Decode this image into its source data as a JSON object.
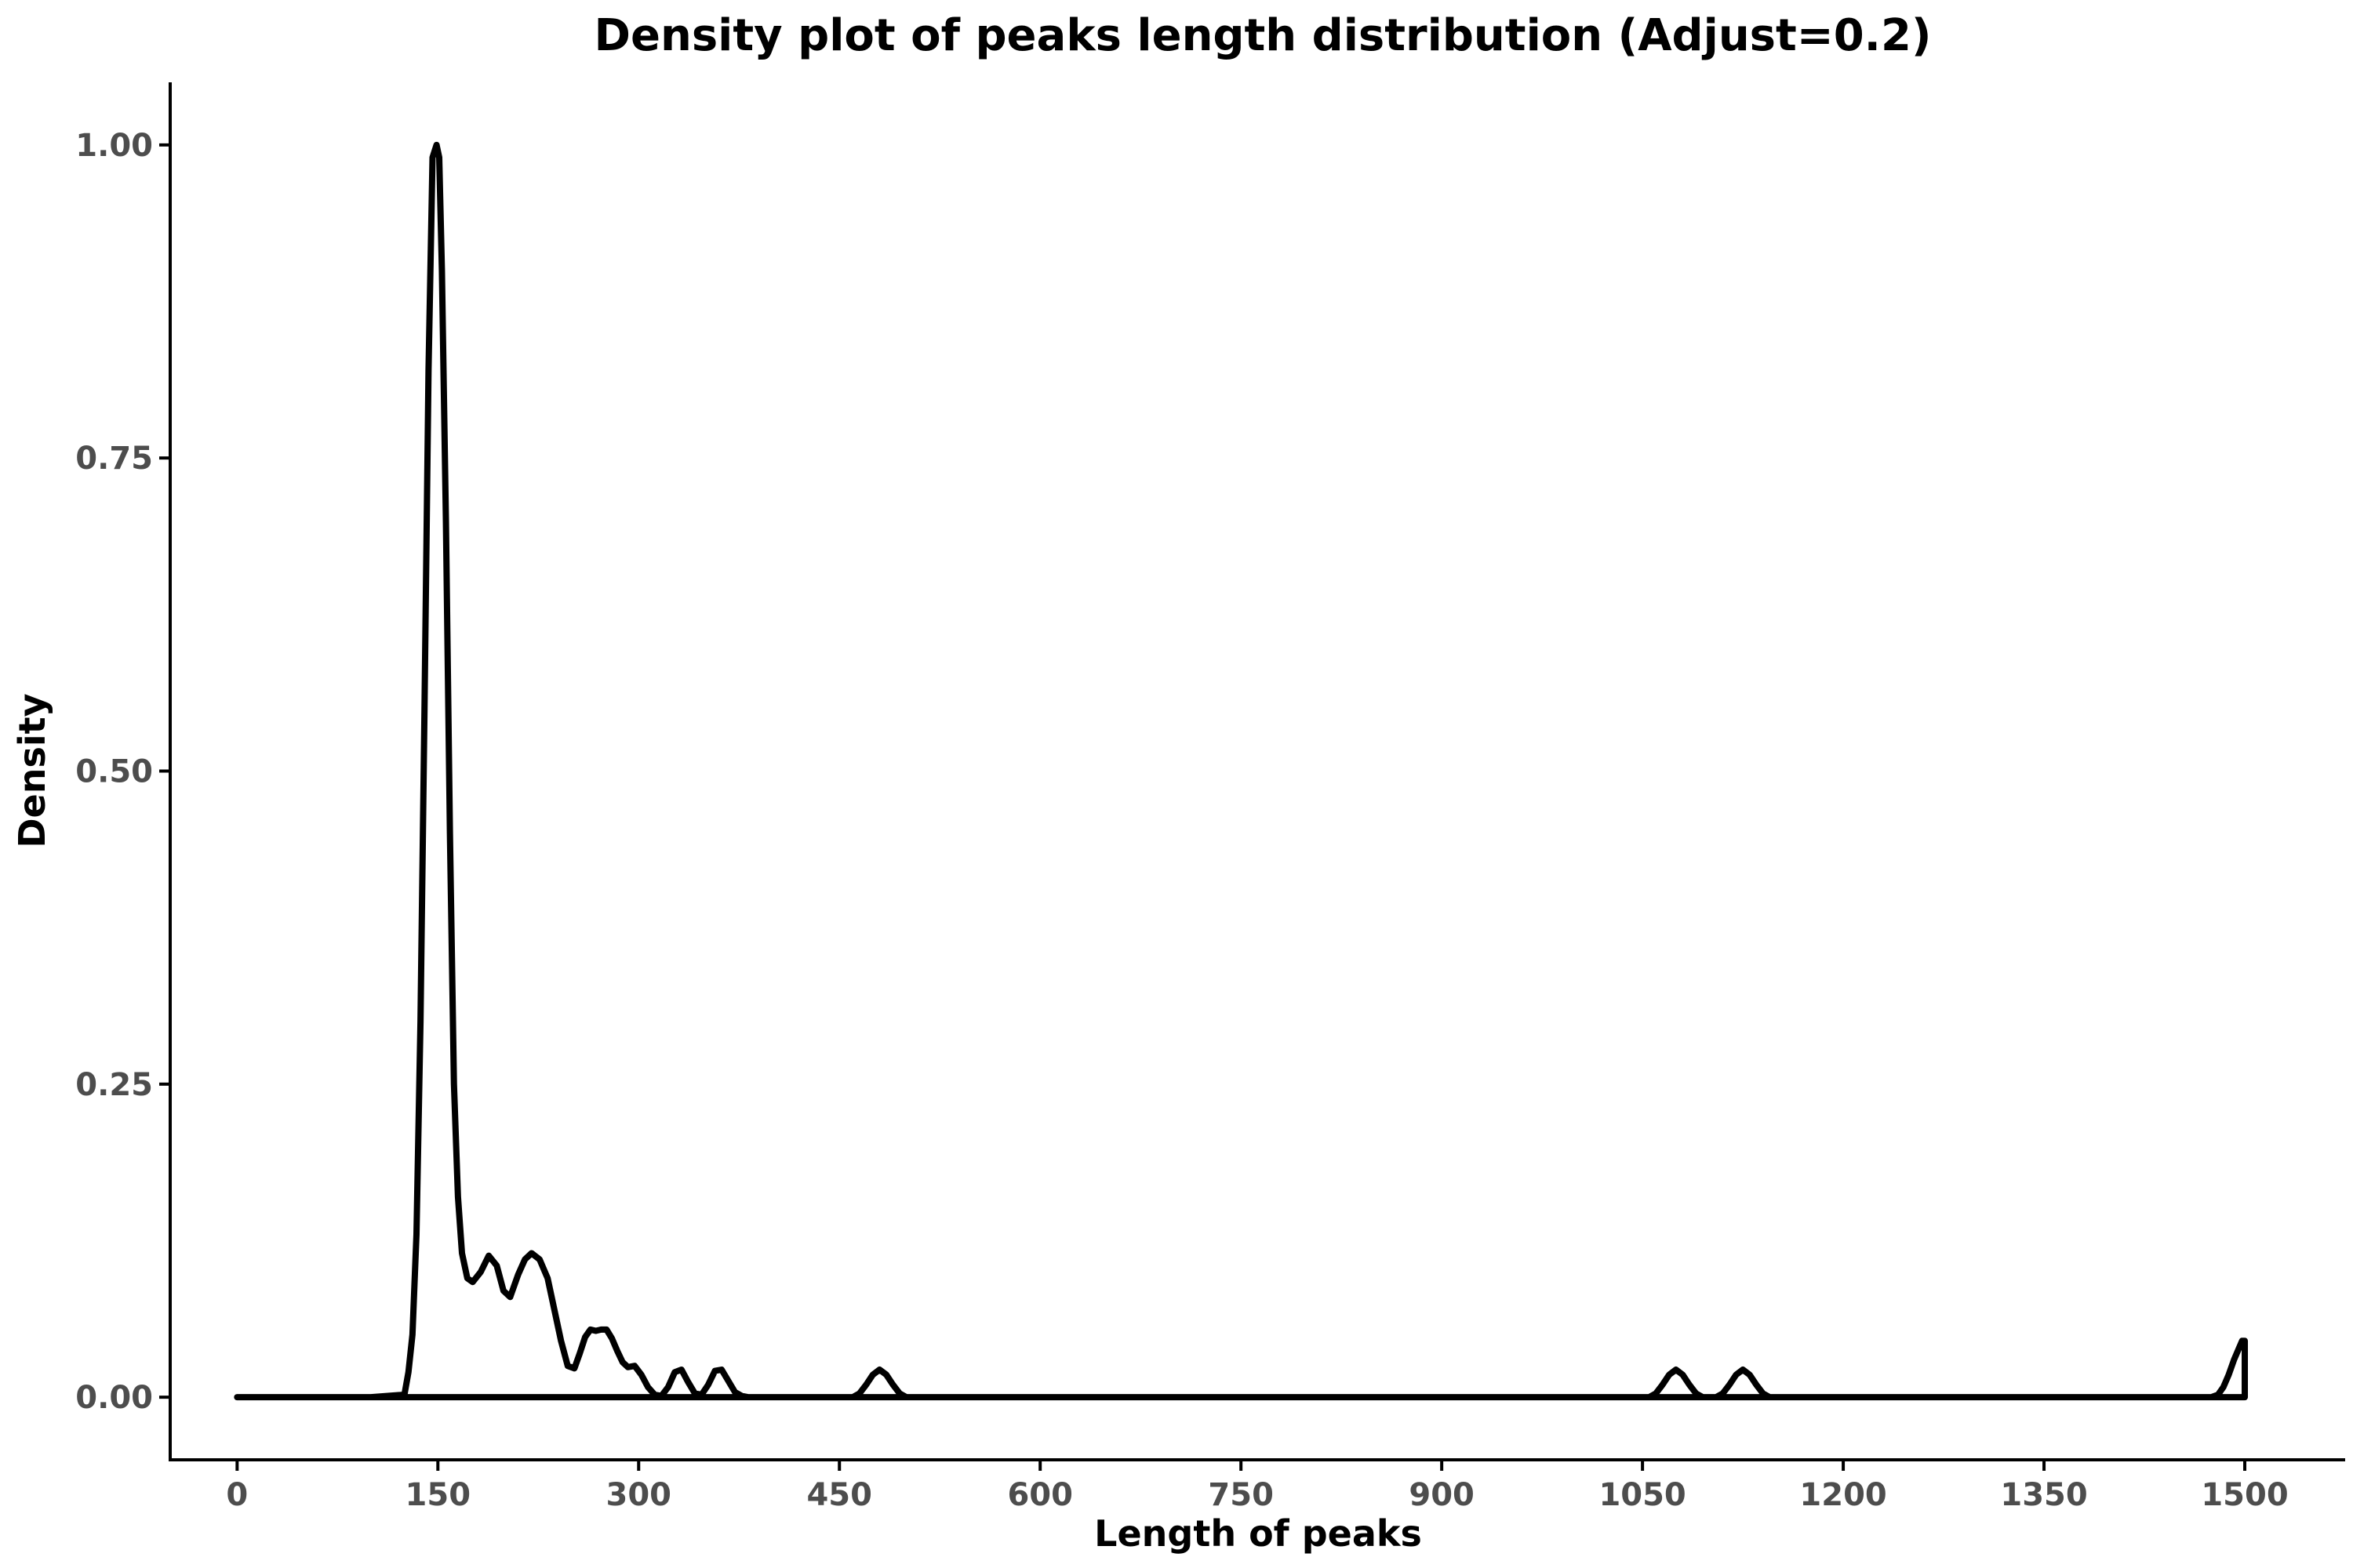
{
  "chart_data": {
    "type": "line",
    "title": "Density plot of peaks length distribution (Adjust=0.2)",
    "xlabel": "Length of peaks",
    "ylabel": "Density",
    "xlim": [
      -50,
      1575
    ],
    "ylim": [
      -0.05,
      1.05
    ],
    "x_ticks": [
      0,
      150,
      300,
      450,
      600,
      750,
      900,
      1050,
      1200,
      1350,
      1500
    ],
    "x_tick_labels": [
      "0",
      "150",
      "300",
      "450",
      "600",
      "750",
      "900",
      "1050",
      "1200",
      "1350",
      "1500"
    ],
    "y_ticks": [
      0,
      0.25,
      0.5,
      0.75,
      1.0
    ],
    "y_tick_labels": [
      "0.00",
      "0.25",
      "0.50",
      "0.75",
      "1.00"
    ],
    "grid": false,
    "legend": "none",
    "line_color": "#000000",
    "series": [
      {
        "x": [
          0,
          100,
          125,
          128,
          131,
          134,
          137,
          140,
          143,
          146,
          149,
          151,
          153,
          156,
          159,
          162,
          165,
          168,
          172,
          176,
          182,
          188,
          194,
          199,
          204,
          210,
          215,
          220,
          226,
          232,
          237,
          242,
          247,
          252,
          256,
          260,
          264,
          268,
          272,
          276,
          280,
          284,
          288,
          292,
          297,
          302,
          307,
          312,
          317,
          322,
          327,
          332,
          337,
          342,
          347,
          352,
          357,
          362,
          367,
          372,
          377,
          382,
          387,
          392,
          397,
          402,
          460,
          465,
          470,
          475,
          480,
          485,
          490,
          495,
          500,
          505,
          1055,
          1060,
          1065,
          1070,
          1075,
          1080,
          1085,
          1090,
          1095,
          1100,
          1105,
          1110,
          1115,
          1120,
          1125,
          1130,
          1135,
          1140,
          1145,
          1150,
          1475,
          1480,
          1484,
          1488,
          1492,
          1496,
          1498,
          1500,
          1500,
          1500
        ],
        "y": [
          0,
          0,
          0.002,
          0.02,
          0.05,
          0.13,
          0.3,
          0.55,
          0.82,
          0.99,
          1.0,
          0.99,
          0.9,
          0.7,
          0.45,
          0.25,
          0.16,
          0.115,
          0.095,
          0.092,
          0.1,
          0.113,
          0.105,
          0.085,
          0.08,
          0.098,
          0.11,
          0.115,
          0.11,
          0.095,
          0.07,
          0.045,
          0.025,
          0.023,
          0.035,
          0.048,
          0.054,
          0.053,
          0.054,
          0.054,
          0.047,
          0.037,
          0.028,
          0.024,
          0.025,
          0.018,
          0.008,
          0.002,
          0.001,
          0.008,
          0.02,
          0.022,
          0.012,
          0.003,
          0.002,
          0.01,
          0.021,
          0.022,
          0.013,
          0.004,
          0.001,
          0,
          0,
          0,
          0,
          0,
          0,
          0.003,
          0.01,
          0.018,
          0.022,
          0.018,
          0.01,
          0.003,
          0,
          0,
          0,
          0.003,
          0.01,
          0.018,
          0.022,
          0.018,
          0.01,
          0.003,
          0,
          0,
          0,
          0.003,
          0.01,
          0.018,
          0.022,
          0.018,
          0.01,
          0.003,
          0,
          0,
          0,
          0.002,
          0.008,
          0.018,
          0.03,
          0.04,
          0.045,
          0.045,
          0.02,
          0
        ]
      }
    ]
  }
}
